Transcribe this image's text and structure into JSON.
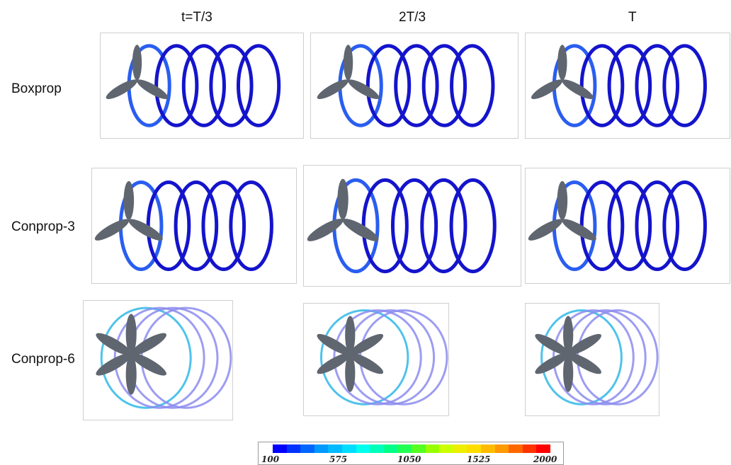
{
  "columns": [
    "t=T/3",
    "2T/3",
    "T"
  ],
  "rows": [
    "Boxprop",
    "Conprop-3",
    "Conprop-6"
  ],
  "colorbar": {
    "ticks": [
      "100",
      "575",
      "1050",
      "1525",
      "2000"
    ],
    "colors": [
      "#0000ff",
      "#0033ff",
      "#0066ff",
      "#0099ff",
      "#00bbff",
      "#00ddff",
      "#00ffee",
      "#00ffbb",
      "#00ff88",
      "#22ff55",
      "#55ff22",
      "#99ff00",
      "#ccff00",
      "#eeee00",
      "#ffdd00",
      "#ffbb00",
      "#ff9900",
      "#ff6600",
      "#ff3300",
      "#ff0000"
    ]
  },
  "colors": {
    "helix_dark": "#1414cc",
    "helix_mid": "#2a5ef0",
    "helix_cyan": "#2fb8e8",
    "helix_violet": "#8c8cf0",
    "blade": "#5f6670"
  }
}
